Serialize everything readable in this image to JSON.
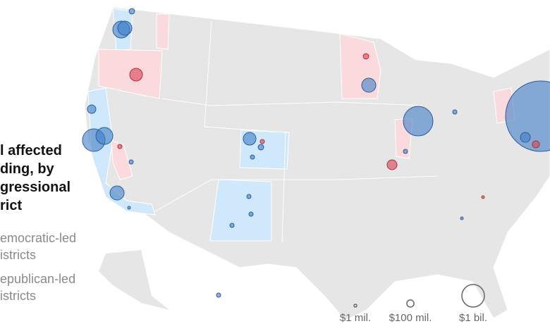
{
  "title_lines": [
    "l affected",
    "ding, by",
    "gressional",
    "rict"
  ],
  "legend": {
    "democratic": [
      "emocratic-led",
      "istricts"
    ],
    "republican": [
      "epublican-led",
      "istricts"
    ]
  },
  "size_legend": [
    {
      "value": 1,
      "label": "$1 mil."
    },
    {
      "value": 100,
      "label": "$100 mil."
    },
    {
      "value": 1000,
      "label": "$1 bil."
    }
  ],
  "districts": [
    {
      "party": "Democratic",
      "value": 560
    },
    {
      "party": "Democratic",
      "value": 390
    },
    {
      "party": "Democratic",
      "value": 1000
    },
    {
      "party": "Democratic",
      "value": 560
    },
    {
      "party": "Republican",
      "value": 316
    },
    {
      "party": "Democratic",
      "value": 390
    },
    {
      "party": "Democratic",
      "value": 316
    },
    {
      "party": "Democratic",
      "value": 390
    },
    {
      "party": "Democratic",
      "value": 1720
    },
    {
      "party": "Democratic",
      "value": 9770
    },
    {
      "party": "Republican",
      "value": 190
    },
    {
      "party": "Democratic",
      "value": 140
    },
    {
      "party": "Republican",
      "value": 60
    },
    {
      "party": "Republican",
      "value": 35
    },
    {
      "party": "Democratic",
      "value": 60
    },
    {
      "party": "Democratic",
      "value": 35
    },
    {
      "party": "Democratic",
      "value": 35
    },
    {
      "party": "Democratic",
      "value": 35
    },
    {
      "party": "Democratic",
      "value": 35
    },
    {
      "party": "Democratic",
      "value": 35
    },
    {
      "party": "Democratic",
      "value": 35
    },
    {
      "party": "Democratic",
      "value": 190
    },
    {
      "party": "Republican",
      "value": 100
    },
    {
      "party": "Democratic",
      "value": 35
    },
    {
      "party": "Republican",
      "value": 35
    },
    {
      "party": "Democratic",
      "value": 35
    },
    {
      "party": "Democratic",
      "value": 16
    },
    {
      "party": "Democratic",
      "value": 16
    },
    {
      "party": "Republican",
      "value": 16
    },
    {
      "party": "Democratic",
      "value": 60
    }
  ]
}
